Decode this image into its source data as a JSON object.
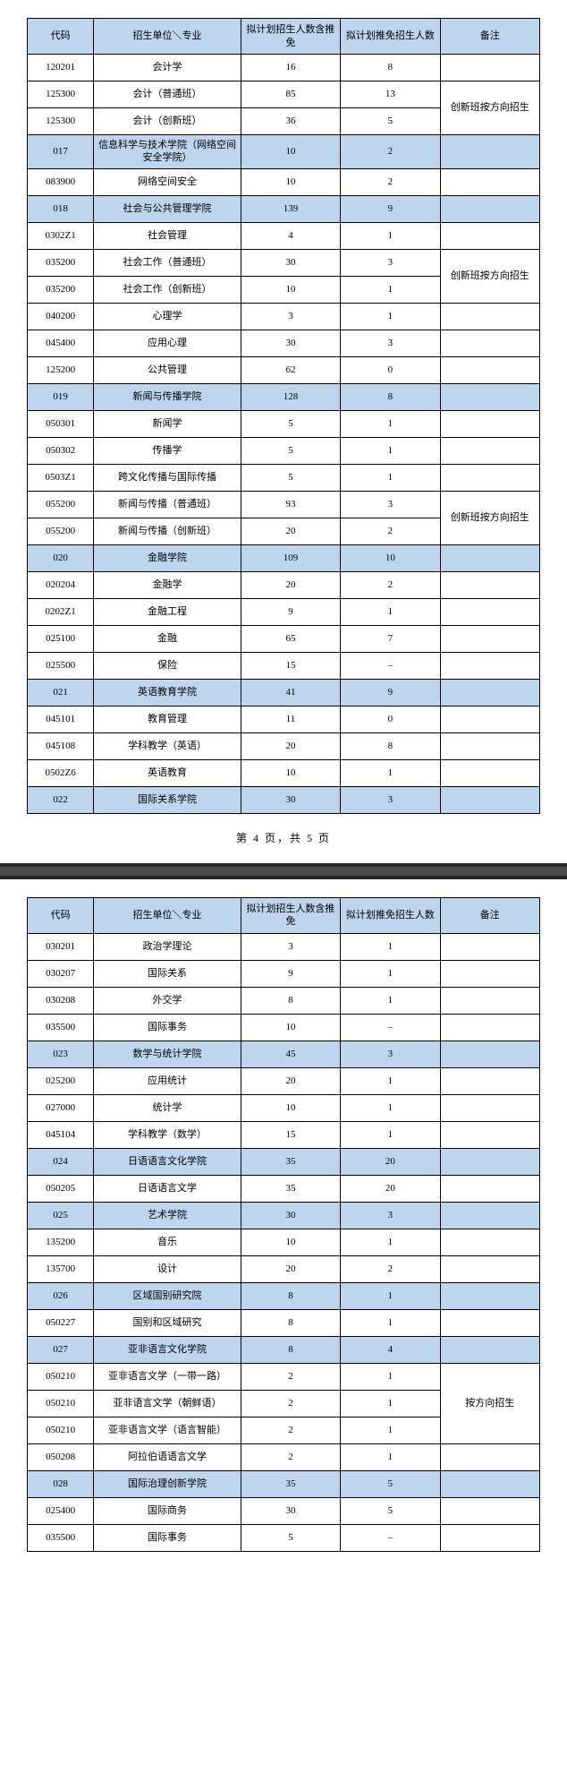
{
  "headers": {
    "code": "代码",
    "name": "招生单位＼专业",
    "num1": "拟计划招生人数含推免",
    "num2": "拟计划推免招生人数",
    "note": "备注"
  },
  "note_innovation": "创新班按方向招生",
  "note_direction": "按方向招生",
  "pagenum1": "第 4 页，共 5 页",
  "table1": [
    {
      "code": "120201",
      "name": "会计学",
      "n1": "16",
      "n2": "8",
      "hl": false
    },
    {
      "code": "125300",
      "name": "会计（普通班）",
      "n1": "85",
      "n2": "13",
      "hl": false,
      "merge_start": true,
      "merge_span": 2,
      "note_key": "note_innovation"
    },
    {
      "code": "125300",
      "name": "会计（创新班）",
      "n1": "36",
      "n2": "5",
      "hl": false,
      "skip_note": true
    },
    {
      "code": "017",
      "name": "信息科学与技术学院（网络空间安全学院）",
      "n1": "10",
      "n2": "2",
      "hl": true
    },
    {
      "code": "083900",
      "name": "网络空间安全",
      "n1": "10",
      "n2": "2",
      "hl": false
    },
    {
      "code": "018",
      "name": "社会与公共管理学院",
      "n1": "139",
      "n2": "9",
      "hl": true
    },
    {
      "code": "0302Z1",
      "name": "社会管理",
      "n1": "4",
      "n2": "1",
      "hl": false
    },
    {
      "code": "035200",
      "name": "社会工作（普通班）",
      "n1": "30",
      "n2": "3",
      "hl": false,
      "merge_start": true,
      "merge_span": 2,
      "note_key": "note_innovation"
    },
    {
      "code": "035200",
      "name": "社会工作（创新班）",
      "n1": "10",
      "n2": "1",
      "hl": false,
      "skip_note": true
    },
    {
      "code": "040200",
      "name": "心理学",
      "n1": "3",
      "n2": "1",
      "hl": false
    },
    {
      "code": "045400",
      "name": "应用心理",
      "n1": "30",
      "n2": "3",
      "hl": false
    },
    {
      "code": "125200",
      "name": "公共管理",
      "n1": "62",
      "n2": "0",
      "hl": false
    },
    {
      "code": "019",
      "name": "新闻与传播学院",
      "n1": "128",
      "n2": "8",
      "hl": true
    },
    {
      "code": "050301",
      "name": "新闻学",
      "n1": "5",
      "n2": "1",
      "hl": false
    },
    {
      "code": "050302",
      "name": "传播学",
      "n1": "5",
      "n2": "1",
      "hl": false
    },
    {
      "code": "0503Z1",
      "name": "跨文化传播与国际传播",
      "n1": "5",
      "n2": "1",
      "hl": false
    },
    {
      "code": "055200",
      "name": "新闻与传播（普通班）",
      "n1": "93",
      "n2": "3",
      "hl": false,
      "merge_start": true,
      "merge_span": 2,
      "note_key": "note_innovation"
    },
    {
      "code": "055200",
      "name": "新闻与传播（创新班）",
      "n1": "20",
      "n2": "2",
      "hl": false,
      "skip_note": true
    },
    {
      "code": "020",
      "name": "金融学院",
      "n1": "109",
      "n2": "10",
      "hl": true
    },
    {
      "code": "020204",
      "name": "金融学",
      "n1": "20",
      "n2": "2",
      "hl": false
    },
    {
      "code": "0202Z1",
      "name": "金融工程",
      "n1": "9",
      "n2": "1",
      "hl": false
    },
    {
      "code": "025100",
      "name": "金融",
      "n1": "65",
      "n2": "7",
      "hl": false
    },
    {
      "code": "025500",
      "name": "保险",
      "n1": "15",
      "n2": "–",
      "hl": false
    },
    {
      "code": "021",
      "name": "英语教育学院",
      "n1": "41",
      "n2": "9",
      "hl": true
    },
    {
      "code": "045101",
      "name": "教育管理",
      "n1": "11",
      "n2": "0",
      "hl": false
    },
    {
      "code": "045108",
      "name": "学科教学（英语）",
      "n1": "20",
      "n2": "8",
      "hl": false
    },
    {
      "code": "0502Z6",
      "name": "英语教育",
      "n1": "10",
      "n2": "1",
      "hl": false
    },
    {
      "code": "022",
      "name": "国际关系学院",
      "n1": "30",
      "n2": "3",
      "hl": true
    }
  ],
  "table2": [
    {
      "code": "030201",
      "name": "政治学理论",
      "n1": "3",
      "n2": "1",
      "hl": false
    },
    {
      "code": "030207",
      "name": "国际关系",
      "n1": "9",
      "n2": "1",
      "hl": false
    },
    {
      "code": "030208",
      "name": "外交学",
      "n1": "8",
      "n2": "1",
      "hl": false
    },
    {
      "code": "035500",
      "name": "国际事务",
      "n1": "10",
      "n2": "–",
      "hl": false
    },
    {
      "code": "023",
      "name": "数学与统计学院",
      "n1": "45",
      "n2": "3",
      "hl": true
    },
    {
      "code": "025200",
      "name": "应用统计",
      "n1": "20",
      "n2": "1",
      "hl": false
    },
    {
      "code": "027000",
      "name": "统计学",
      "n1": "10",
      "n2": "1",
      "hl": false
    },
    {
      "code": "045104",
      "name": "学科教学（数学）",
      "n1": "15",
      "n2": "1",
      "hl": false
    },
    {
      "code": "024",
      "name": "日语语言文化学院",
      "n1": "35",
      "n2": "20",
      "hl": true
    },
    {
      "code": "050205",
      "name": "日语语言文学",
      "n1": "35",
      "n2": "20",
      "hl": false
    },
    {
      "code": "025",
      "name": "艺术学院",
      "n1": "30",
      "n2": "3",
      "hl": true
    },
    {
      "code": "135200",
      "name": "音乐",
      "n1": "10",
      "n2": "1",
      "hl": false
    },
    {
      "code": "135700",
      "name": "设计",
      "n1": "20",
      "n2": "2",
      "hl": false
    },
    {
      "code": "026",
      "name": "区域国别研究院",
      "n1": "8",
      "n2": "1",
      "hl": true
    },
    {
      "code": "050227",
      "name": "国别和区域研究",
      "n1": "8",
      "n2": "1",
      "hl": false
    },
    {
      "code": "027",
      "name": "亚非语言文化学院",
      "n1": "8",
      "n2": "4",
      "hl": true
    },
    {
      "code": "050210",
      "name": "亚非语言文学（一带一路）",
      "n1": "2",
      "n2": "1",
      "hl": false,
      "merge_start": true,
      "merge_span": 3,
      "note_key": "note_direction"
    },
    {
      "code": "050210",
      "name": "亚非语言文学（朝鲜语）",
      "n1": "2",
      "n2": "1",
      "hl": false,
      "skip_note": true
    },
    {
      "code": "050210",
      "name": "亚非语言文学（语言智能）",
      "n1": "2",
      "n2": "1",
      "hl": false,
      "skip_note": true
    },
    {
      "code": "050208",
      "name": "阿拉伯语语言文学",
      "n1": "2",
      "n2": "1",
      "hl": false
    },
    {
      "code": "028",
      "name": "国际治理创新学院",
      "n1": "35",
      "n2": "5",
      "hl": true
    },
    {
      "code": "025400",
      "name": "国际商务",
      "n1": "30",
      "n2": "5",
      "hl": false
    },
    {
      "code": "035500",
      "name": "国际事务",
      "n1": "5",
      "n2": "–",
      "hl": false
    }
  ]
}
